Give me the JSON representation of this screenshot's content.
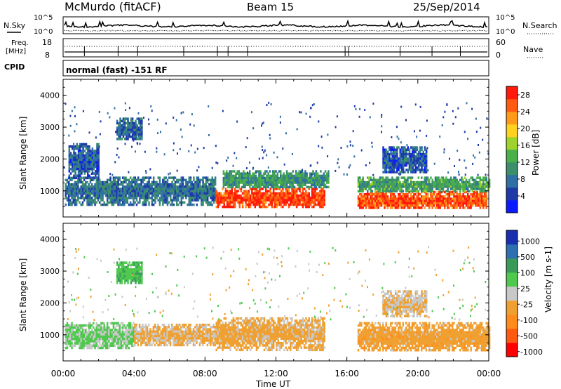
{
  "header": {
    "station": "McMurdo (fitACF)",
    "beam": "Beam 15",
    "date": "25/Sep/2014"
  },
  "noise_panel": {
    "left_label": "N.Sky",
    "right_label": "N.Search",
    "left_ticks": [
      "10^5",
      "10^0"
    ],
    "right_ticks": [
      "10^5",
      "10^0"
    ]
  },
  "freq_panel": {
    "left_label_line1": "Freq.",
    "left_label_line2": "[MHz]",
    "right_label": "Nave",
    "left_ticks": [
      "18",
      "8"
    ],
    "right_ticks": [
      "60",
      "0"
    ]
  },
  "cpid": {
    "label": "CPID",
    "text": "normal (fast) -151 RF"
  },
  "x_axis": {
    "title": "Time UT",
    "ticks": [
      "00:00",
      "04:00",
      "08:00",
      "12:00",
      "16:00",
      "20:00",
      "00:00"
    ]
  },
  "colors": {
    "power_scale": [
      "#0a1cff",
      "#1f3aa8",
      "#2f6fa3",
      "#3d8f6b",
      "#49b04a",
      "#9fd22a",
      "#ffd21f",
      "#ff9a1a",
      "#ff5a10",
      "#ff1a0a"
    ],
    "velocity_scale": [
      "#ff0000",
      "#ff5a10",
      "#ff8c1a",
      "#f0a030",
      "#c8c8c8",
      "#4ec94e",
      "#3a9a5a",
      "#2d6fb0",
      "#1a2fb0"
    ]
  },
  "chart_data": [
    {
      "type": "heatmap",
      "panel": "power",
      "ylabel": "Slant Range [km]",
      "xlabel": "Time UT",
      "ylim": [
        180,
        4500
      ],
      "xlim": [
        0,
        24
      ],
      "yticks": [
        "1000",
        "2000",
        "3000",
        "4000"
      ],
      "colorbar": {
        "label": "Power [dB]",
        "ticks": [
          "4",
          "8",
          "12",
          "16",
          "20",
          "24",
          "28"
        ],
        "range": [
          0,
          30
        ]
      },
      "regions": [
        {
          "t0": 0.1,
          "t1": 8.6,
          "r0": 600,
          "r1": 1450,
          "level": 8
        },
        {
          "t0": 0.3,
          "t1": 2.0,
          "r0": 1400,
          "r1": 2500,
          "level": 6
        },
        {
          "t0": 3.0,
          "t1": 4.4,
          "r0": 2600,
          "r1": 3300,
          "level": 7
        },
        {
          "t0": 8.6,
          "t1": 14.7,
          "r0": 500,
          "r1": 1100,
          "level": 27
        },
        {
          "t0": 9.0,
          "t1": 15.0,
          "r0": 1100,
          "r1": 1650,
          "level": 11
        },
        {
          "t0": 16.6,
          "t1": 23.9,
          "r0": 450,
          "r1": 1000,
          "level": 26
        },
        {
          "t0": 16.6,
          "t1": 24.0,
          "r0": 1000,
          "r1": 1450,
          "level": 12
        },
        {
          "t0": 18.0,
          "t1": 20.5,
          "r0": 1600,
          "r1": 2400,
          "level": 6
        }
      ]
    },
    {
      "type": "heatmap",
      "panel": "velocity",
      "ylabel": "Slant Range [km]",
      "xlabel": "Time UT",
      "ylim": [
        180,
        4500
      ],
      "xlim": [
        0,
        24
      ],
      "yticks": [
        "1000",
        "2000",
        "3000",
        "4000"
      ],
      "colorbar": {
        "label": "Velocity [m s-1]",
        "ticks": [
          "1000",
          "500",
          "100",
          "25",
          "-25",
          "-100",
          "-500",
          "-1000"
        ],
        "range": [
          -1100,
          1100
        ]
      },
      "regions": [
        {
          "t0": 0.1,
          "t1": 4.0,
          "r0": 600,
          "r1": 1400,
          "level": 150
        },
        {
          "t0": 4.0,
          "t1": 8.6,
          "r0": 700,
          "r1": 1350,
          "level": -150
        },
        {
          "t0": 3.0,
          "t1": 4.4,
          "r0": 2600,
          "r1": 3300,
          "level": 300
        },
        {
          "t0": 8.6,
          "t1": 14.7,
          "r0": 550,
          "r1": 1550,
          "level": -200
        },
        {
          "t0": 16.6,
          "t1": 24.0,
          "r0": 500,
          "r1": 1400,
          "level": -250
        },
        {
          "t0": 18.0,
          "t1": 20.5,
          "r0": 1600,
          "r1": 2400,
          "level": -100
        }
      ]
    }
  ]
}
